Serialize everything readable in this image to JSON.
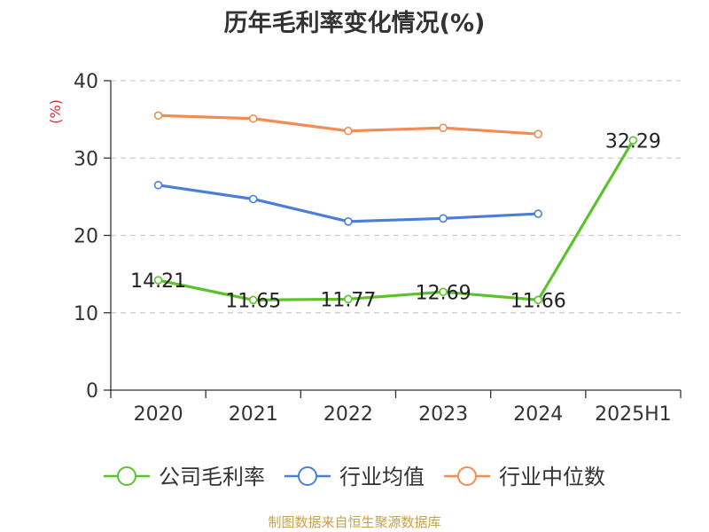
{
  "chart_data": {
    "type": "line",
    "title": "历年毛利率变化情况(%)",
    "ylabel": "(%)",
    "xlabel": "",
    "categories": [
      "2020",
      "2021",
      "2022",
      "2023",
      "2024",
      "2025H1"
    ],
    "ylim": [
      0,
      40
    ],
    "yticks": [
      0,
      10,
      20,
      30,
      40
    ],
    "grid": true,
    "legend_position": "bottom",
    "series": [
      {
        "name": "公司毛利率",
        "color": "#5cc22c",
        "values": [
          14.21,
          11.65,
          11.77,
          12.69,
          11.66,
          32.29
        ],
        "labels": [
          "14.21",
          "11.65",
          "11.77",
          "12.69",
          "11.66",
          "32.29"
        ]
      },
      {
        "name": "行业均值",
        "color": "#4a7fd8",
        "values": [
          26.5,
          24.7,
          21.8,
          22.2,
          22.8,
          null
        ]
      },
      {
        "name": "行业中位数",
        "color": "#f28c55",
        "values": [
          35.5,
          35.1,
          33.5,
          33.9,
          33.1,
          null
        ]
      }
    ]
  },
  "source": "制图数据来自恒生聚源数据库"
}
